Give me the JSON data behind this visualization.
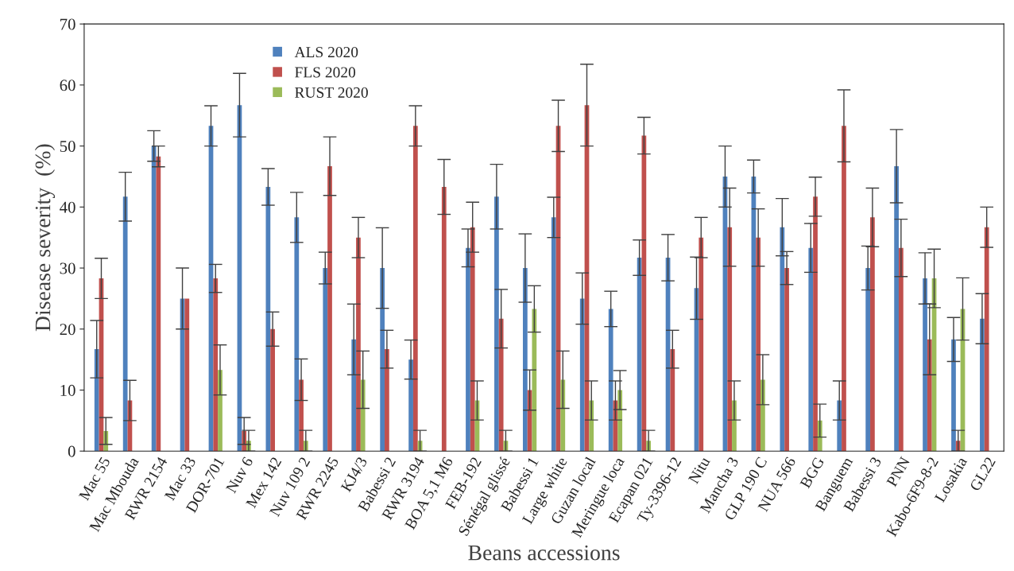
{
  "chart_data": {
    "type": "bar",
    "xlabel": "Beans accessions",
    "ylabel": "Disease severity  (%)",
    "categories": [
      "Mac 55",
      "Mac Mbouda",
      "RWR 2154",
      "Mac 33",
      "DOR-701",
      "Nuv 6",
      "Mex 142",
      "Nuv 109 2",
      "RWR 2245",
      "KJ4/3",
      "Babessi 2",
      "RWR 3194",
      "BOA 5,1 M6",
      "FEB-192",
      "Sénégal glissé",
      "Babessi 1",
      "Large white",
      "Guzan local",
      "Meringue loca",
      "Ecapan 021",
      "Ty-3396-12",
      "Nitu",
      "Mancha 3",
      "GLP 190 C",
      "NUA 566",
      "BGG",
      "Banguem",
      "Babessi 3",
      "PNN",
      "Kabo-6F9-8-2",
      "Losakia",
      "GL22"
    ],
    "series": [
      {
        "name": "ALS 2020",
        "color": "#4f81bd",
        "values": [
          16.7,
          41.7,
          50,
          25,
          53.3,
          56.7,
          43.3,
          38.3,
          30,
          18.3,
          30,
          15,
          0,
          33.3,
          41.7,
          30,
          38.3,
          25,
          23.3,
          31.7,
          31.7,
          26.7,
          45,
          45,
          36.7,
          33.3,
          8.3,
          30,
          46.7,
          28.3,
          18.3,
          21.7
        ],
        "errors": [
          4.7,
          4,
          2.5,
          5,
          3.3,
          5.2,
          3,
          4.1,
          2.6,
          5.8,
          6.6,
          3.2,
          null,
          3.1,
          5.3,
          5.6,
          3.3,
          4.2,
          2.9,
          2.9,
          3.8,
          5.1,
          5,
          2.7,
          4.7,
          4,
          3.2,
          3.6,
          6,
          4.2,
          3.6,
          4.1
        ]
      },
      {
        "name": "FLS 2020",
        "color": "#c0504d",
        "values": [
          28.3,
          8.3,
          48.3,
          25,
          28.3,
          3.3,
          20,
          11.7,
          46.7,
          35,
          16.7,
          53.3,
          43.3,
          36.7,
          21.7,
          10,
          53.3,
          56.7,
          8.3,
          51.7,
          16.7,
          35,
          36.7,
          35,
          30,
          41.7,
          53.3,
          38.3,
          33.3,
          18.3,
          1.7,
          36.7
        ],
        "errors": [
          3.3,
          3.3,
          1.7,
          null,
          2.3,
          2.2,
          2.8,
          3.4,
          4.8,
          3.3,
          3.1,
          3.3,
          4.5,
          4.1,
          4.8,
          3.3,
          4.2,
          6.7,
          3.2,
          3,
          3.1,
          3.3,
          6.4,
          4.7,
          2.7,
          3.2,
          5.9,
          4.8,
          4.7,
          5.8,
          1.7,
          3.3
        ]
      },
      {
        "name": "RUST 2020",
        "color": "#9bbb59",
        "values": [
          3.3,
          0,
          0,
          0,
          13.3,
          1.7,
          0,
          1.7,
          0,
          11.7,
          0,
          1.7,
          0,
          8.3,
          1.7,
          23.3,
          11.7,
          8.3,
          10,
          1.7,
          0,
          0,
          8.3,
          11.7,
          0,
          5,
          0,
          0,
          0,
          28.3,
          23.3,
          0
        ],
        "errors": [
          2.2,
          null,
          null,
          null,
          4.1,
          1.7,
          null,
          1.7,
          null,
          4.7,
          null,
          1.7,
          null,
          3.2,
          1.7,
          3.8,
          4.7,
          3.2,
          3.2,
          1.7,
          null,
          null,
          3.2,
          4.1,
          null,
          2.7,
          null,
          null,
          null,
          4.8,
          5.1,
          null
        ]
      }
    ],
    "ylim": [
      0,
      70
    ],
    "yticks": [
      0,
      10,
      20,
      30,
      40,
      50,
      60,
      70
    ],
    "grid": false,
    "legend": "top left"
  }
}
